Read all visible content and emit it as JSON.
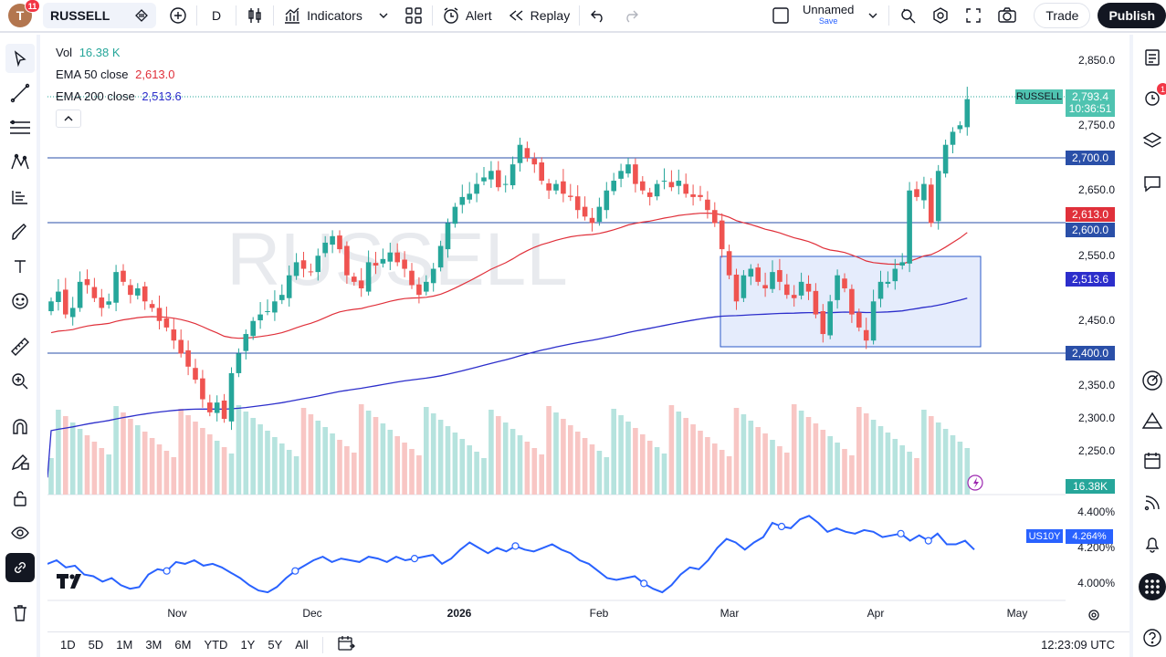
{
  "toolbar": {
    "avatar_letter": "T",
    "avatar_badge": "11",
    "symbol": "RUSSELL",
    "interval": "D",
    "indicators_label": "Indicators",
    "alert_label": "Alert",
    "replay_label": "Replay",
    "layout_name": "Unnamed",
    "layout_save": "Save",
    "trade_label": "Trade",
    "publish_label": "Publish"
  },
  "legend": {
    "vol_label": "Vol",
    "vol_value": "16.38 K",
    "ema50_label": "EMA 50 close",
    "ema50_value": "2,613.0",
    "ema200_label": "EMA 200 close",
    "ema200_value": "2,513.6"
  },
  "watermark": "RUSSELL",
  "price_axis": {
    "ticks": [
      "2,850.0",
      "2,750.0",
      "2,650.0",
      "2,550.0",
      "2,450.0",
      "2,350.0",
      "2,300.0",
      "2,250.0"
    ],
    "current_symbol": "RUSSELL",
    "current_price": "2,793.4",
    "countdown": "10:36:51",
    "level_2700": "2,700.0",
    "ema50_tag": "2,613.0",
    "level_2600": "2,600.0",
    "ema200_tag": "2,513.6",
    "level_2400": "2,400.0",
    "volume_tag": "16.38K"
  },
  "lower_pane": {
    "symbol": "US10Y",
    "value": "4.264%",
    "ticks": [
      "4.400%",
      "4.200%",
      "4.000%"
    ]
  },
  "time_axis": [
    "Nov",
    "Dec",
    "2026",
    "Feb",
    "Mar",
    "Apr",
    "May"
  ],
  "bottom": {
    "ranges": [
      "1D",
      "5D",
      "1M",
      "3M",
      "6M",
      "YTD",
      "1Y",
      "5Y",
      "All"
    ],
    "clock": "12:23:09 UTC"
  },
  "colors": {
    "up": "#26a69a",
    "down": "#ef5350",
    "ema50": "#e0303a",
    "ema200": "#2c2ecb",
    "hline": "#2a4fa8",
    "box_fill": "#dce6fb",
    "box_stroke": "#2a59c9",
    "us10y": "#2962ff"
  },
  "notifications": {
    "right_badge": "1"
  },
  "chart_data": {
    "type": "candlestick",
    "series_name": "RUSSELL",
    "x": [
      "2025-10-17",
      "2025-10-20",
      "2025-10-21",
      "2025-10-22",
      "2025-10-23",
      "2025-10-24",
      "2025-10-27",
      "2025-10-28",
      "2025-10-29",
      "2025-10-30",
      "2025-10-31",
      "2025-11-03",
      "2025-11-04",
      "2025-11-05",
      "2025-11-06",
      "2025-11-07",
      "2025-11-10",
      "2025-11-11",
      "2025-11-12",
      "2025-11-13",
      "2025-11-14",
      "2025-11-17",
      "2025-11-18",
      "2025-11-19",
      "2025-11-20",
      "2025-11-21",
      "2025-11-24",
      "2025-11-25",
      "2025-11-26",
      "2025-11-28",
      "2025-12-01",
      "2025-12-02",
      "2025-12-03",
      "2025-12-04",
      "2025-12-05",
      "2025-12-08",
      "2025-12-09",
      "2025-12-10",
      "2025-12-11",
      "2025-12-12",
      "2025-12-15",
      "2025-12-16",
      "2025-12-17",
      "2025-12-18",
      "2025-12-19",
      "2025-12-22",
      "2025-12-23",
      "2025-12-24",
      "2025-12-26",
      "2025-12-29",
      "2025-12-30",
      "2025-12-31",
      "2026-01-02",
      "2026-01-05",
      "2026-01-06",
      "2026-01-07",
      "2026-01-08",
      "2026-01-09",
      "2026-01-12",
      "2026-01-13",
      "2026-01-14",
      "2026-01-15",
      "2026-01-16",
      "2026-01-20",
      "2026-01-21",
      "2026-01-22",
      "2026-01-23",
      "2026-01-26",
      "2026-01-27",
      "2026-01-28",
      "2026-01-29",
      "2026-01-30",
      "2026-02-02",
      "2026-02-03",
      "2026-02-04",
      "2026-02-05",
      "2026-02-06",
      "2026-02-09",
      "2026-02-10",
      "2026-02-11",
      "2026-02-12",
      "2026-02-13",
      "2026-02-17",
      "2026-02-18",
      "2026-02-19",
      "2026-02-20",
      "2026-02-23",
      "2026-02-24",
      "2026-02-25",
      "2026-02-26",
      "2026-02-27",
      "2026-03-02",
      "2026-03-03",
      "2026-03-04",
      "2026-03-05",
      "2026-03-06",
      "2026-03-09",
      "2026-03-10",
      "2026-03-11",
      "2026-03-12",
      "2026-03-13",
      "2026-03-16",
      "2026-03-17",
      "2026-03-18",
      "2026-03-19",
      "2026-03-20",
      "2026-03-23",
      "2026-03-24",
      "2026-03-25",
      "2026-03-26",
      "2026-03-27",
      "2026-03-30",
      "2026-03-31",
      "2026-04-01",
      "2026-04-02",
      "2026-04-06",
      "2026-04-07",
      "2026-04-08",
      "2026-04-09",
      "2026-04-10",
      "2026-04-13",
      "2026-04-14",
      "2026-04-15",
      "2026-04-16",
      "2026-04-17",
      "2026-04-20",
      "2026-04-21",
      "2026-04-22"
    ],
    "close": [
      2480,
      2495,
      2460,
      2470,
      2510,
      2505,
      2485,
      2470,
      2480,
      2525,
      2510,
      2490,
      2500,
      2480,
      2470,
      2450,
      2440,
      2420,
      2400,
      2380,
      2360,
      2330,
      2310,
      2325,
      2300,
      2370,
      2400,
      2430,
      2450,
      2460,
      2465,
      2480,
      2490,
      2520,
      2540,
      2530,
      2525,
      2550,
      2570,
      2580,
      2560,
      2520,
      2510,
      2500,
      2540,
      2535,
      2545,
      2555,
      2540,
      2530,
      2505,
      2490,
      2510,
      2530,
      2565,
      2600,
      2625,
      2640,
      2645,
      2660,
      2670,
      2680,
      2655,
      2660,
      2690,
      2720,
      2700,
      2690,
      2665,
      2650,
      2660,
      2645,
      2640,
      2620,
      2610,
      2600,
      2625,
      2650,
      2665,
      2680,
      2690,
      2660,
      2650,
      2640,
      2660,
      2665,
      2655,
      2665,
      2645,
      2640,
      2640,
      2620,
      2600,
      2560,
      2520,
      2480,
      2520,
      2530,
      2510,
      2500,
      2525,
      2510,
      2490,
      2485,
      2510,
      2495,
      2460,
      2430,
      2480,
      2520,
      2500,
      2460,
      2440,
      2420,
      2480,
      2510,
      2510,
      2530,
      2540,
      2650,
      2640,
      2660,
      2600,
      2680,
      2720,
      2740,
      2750,
      2790
    ]
  }
}
